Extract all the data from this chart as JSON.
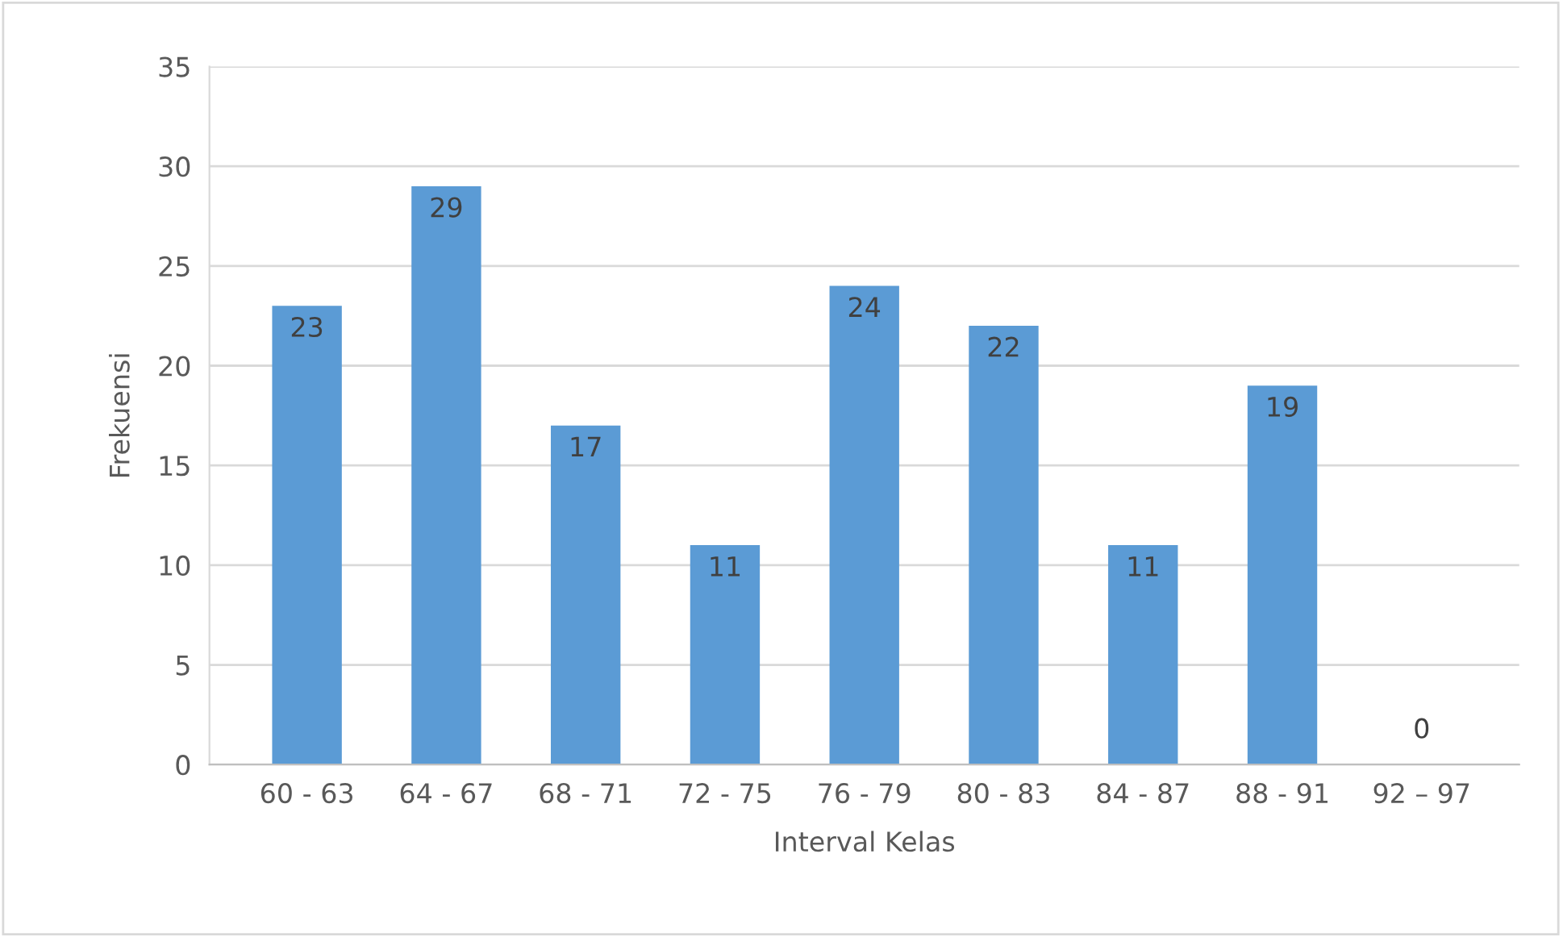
{
  "chart_data": {
    "type": "bar",
    "xlabel": "Interval Kelas",
    "ylabel": "Frekuensi",
    "categories": [
      "60 - 63",
      "64 - 67",
      "68 - 71",
      "72 - 75",
      "76 - 79",
      "80 - 83",
      "84 - 87",
      "88 - 91",
      "92 – 97"
    ],
    "values": [
      23,
      29,
      17,
      11,
      24,
      22,
      11,
      19,
      0
    ],
    "color": "#5b9bd5",
    "ylim": [
      0,
      35
    ],
    "yticks": [
      0,
      5,
      10,
      15,
      20,
      25,
      30,
      35
    ],
    "grid": "y",
    "data_labels": true,
    "legend": false
  }
}
